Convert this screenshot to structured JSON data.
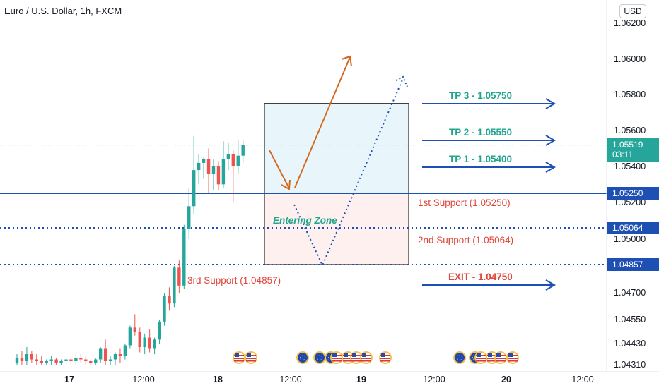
{
  "title": "Euro / U.S. Dollar, 1h, FXCM",
  "currency_button": "USD",
  "colors": {
    "up": "#26a69a",
    "down": "#ef5350",
    "support_line": "#1e4fb3",
    "tp_text": "#1fa58c",
    "exit_text": "#e0453b",
    "arrow": "#1e4fb3",
    "orange_arrow": "#d2691e",
    "dotted_arrow": "#1e4fb3",
    "price_line": "#26a69a",
    "zone_fill_upper": "#e8f6fb",
    "zone_fill_lower": "#fdf0ef"
  },
  "chart_data": {
    "type": "candlestick",
    "title": "Euro / U.S. Dollar, 1h, FXCM",
    "ylim": [
      1.0431,
      1.0622
    ],
    "y_ticks": [
      "1.06200",
      "1.06000",
      "1.05800",
      "1.05600",
      "1.05400",
      "1.05200",
      "1.05000",
      "1.04700",
      "1.04550",
      "1.04430",
      "1.04310"
    ],
    "x_ticks": [
      "17",
      "12:00",
      "18",
      "12:00",
      "19",
      "12:00",
      "20",
      "12:00"
    ],
    "candles": [
      {
        "o": 1.0432,
        "h": 1.0437,
        "l": 1.0431,
        "c": 1.0435
      },
      {
        "o": 1.0435,
        "h": 1.0439,
        "l": 1.0431,
        "c": 1.0433
      },
      {
        "o": 1.0433,
        "h": 1.0441,
        "l": 1.0431,
        "c": 1.0437
      },
      {
        "o": 1.0437,
        "h": 1.0439,
        "l": 1.0432,
        "c": 1.0434
      },
      {
        "o": 1.0434,
        "h": 1.0437,
        "l": 1.0431,
        "c": 1.0433
      },
      {
        "o": 1.0433,
        "h": 1.0436,
        "l": 1.0431,
        "c": 1.0432
      },
      {
        "o": 1.0432,
        "h": 1.0434,
        "l": 1.0431,
        "c": 1.0433
      },
      {
        "o": 1.0433,
        "h": 1.0436,
        "l": 1.0431,
        "c": 1.0434
      },
      {
        "o": 1.0434,
        "h": 1.0435,
        "l": 1.0431,
        "c": 1.0432
      },
      {
        "o": 1.0432,
        "h": 1.0434,
        "l": 1.0431,
        "c": 1.0433
      },
      {
        "o": 1.0433,
        "h": 1.0436,
        "l": 1.0431,
        "c": 1.0434
      },
      {
        "o": 1.0434,
        "h": 1.0436,
        "l": 1.0431,
        "c": 1.0433
      },
      {
        "o": 1.0433,
        "h": 1.0437,
        "l": 1.0431,
        "c": 1.0435
      },
      {
        "o": 1.0435,
        "h": 1.0437,
        "l": 1.0432,
        "c": 1.0434
      },
      {
        "o": 1.0434,
        "h": 1.0436,
        "l": 1.0431,
        "c": 1.0433
      },
      {
        "o": 1.0433,
        "h": 1.0434,
        "l": 1.0431,
        "c": 1.0432
      },
      {
        "o": 1.0432,
        "h": 1.0435,
        "l": 1.0431,
        "c": 1.0434
      },
      {
        "o": 1.0434,
        "h": 1.0441,
        "l": 1.0432,
        "c": 1.044
      },
      {
        "o": 1.044,
        "h": 1.0445,
        "l": 1.0431,
        "c": 1.0433
      },
      {
        "o": 1.0433,
        "h": 1.0436,
        "l": 1.0431,
        "c": 1.0434
      },
      {
        "o": 1.0434,
        "h": 1.0438,
        "l": 1.0431,
        "c": 1.0437
      },
      {
        "o": 1.0437,
        "h": 1.044,
        "l": 1.0432,
        "c": 1.0436
      },
      {
        "o": 1.0436,
        "h": 1.0443,
        "l": 1.0434,
        "c": 1.0442
      },
      {
        "o": 1.0442,
        "h": 1.0452,
        "l": 1.044,
        "c": 1.0451
      },
      {
        "o": 1.0451,
        "h": 1.0458,
        "l": 1.0447,
        "c": 1.0449
      },
      {
        "o": 1.0449,
        "h": 1.0451,
        "l": 1.0438,
        "c": 1.0441
      },
      {
        "o": 1.0441,
        "h": 1.0448,
        "l": 1.0437,
        "c": 1.0446
      },
      {
        "o": 1.0446,
        "h": 1.045,
        "l": 1.0438,
        "c": 1.044
      },
      {
        "o": 1.044,
        "h": 1.0446,
        "l": 1.0437,
        "c": 1.0445
      },
      {
        "o": 1.0445,
        "h": 1.0455,
        "l": 1.0443,
        "c": 1.0454
      },
      {
        "o": 1.0454,
        "h": 1.047,
        "l": 1.0452,
        "c": 1.0468
      },
      {
        "o": 1.0468,
        "h": 1.0473,
        "l": 1.046,
        "c": 1.0464
      },
      {
        "o": 1.0464,
        "h": 1.0485,
        "l": 1.0462,
        "c": 1.0484
      },
      {
        "o": 1.0484,
        "h": 1.0488,
        "l": 1.047,
        "c": 1.0474
      },
      {
        "o": 1.0474,
        "h": 1.0508,
        "l": 1.0472,
        "c": 1.0506
      },
      {
        "o": 1.0506,
        "h": 1.0528,
        "l": 1.05,
        "c": 1.0518
      },
      {
        "o": 1.0518,
        "h": 1.0557,
        "l": 1.0514,
        "c": 1.0538
      },
      {
        "o": 1.0538,
        "h": 1.0547,
        "l": 1.053,
        "c": 1.0542
      },
      {
        "o": 1.0542,
        "h": 1.0545,
        "l": 1.0533,
        "c": 1.0544
      },
      {
        "o": 1.0544,
        "h": 1.055,
        "l": 1.0525,
        "c": 1.0536
      },
      {
        "o": 1.0536,
        "h": 1.0544,
        "l": 1.0527,
        "c": 1.054
      },
      {
        "o": 1.054,
        "h": 1.0543,
        "l": 1.0527,
        "c": 1.053
      },
      {
        "o": 1.053,
        "h": 1.0554,
        "l": 1.0528,
        "c": 1.0544
      },
      {
        "o": 1.0544,
        "h": 1.0553,
        "l": 1.0538,
        "c": 1.0547
      },
      {
        "o": 1.0547,
        "h": 1.0549,
        "l": 1.052,
        "c": 1.054
      },
      {
        "o": 1.054,
        "h": 1.0555,
        "l": 1.0536,
        "c": 1.0546
      },
      {
        "o": 1.0546,
        "h": 1.0555,
        "l": 1.0542,
        "c": 1.0552
      }
    ],
    "current_price": "1.05519",
    "countdown": "03:11",
    "levels": [
      {
        "label": "1.05250",
        "price": 1.0525,
        "style": "solid"
      },
      {
        "label": "1.05064",
        "price": 1.05064,
        "style": "dotted"
      },
      {
        "label": "1.04857",
        "price": 1.04857,
        "style": "dotted"
      }
    ],
    "annotations": {
      "tp3": "TP 3 - 1.05750",
      "tp2": "TP 2 - 1.05550",
      "tp1": "TP 1 - 1.05400",
      "exit": "EXIT - 1.04750",
      "support1": "1st Support (1.05250)",
      "support2": "2nd Support (1.05064)",
      "support3": "3rd Support (1.04857)",
      "entering_zone": "Entering Zone"
    },
    "zone": {
      "top": 1.0575,
      "mid": 1.0525,
      "bottom": 1.04857
    }
  },
  "events": {
    "group1": [
      "us-flag",
      "us-flag"
    ],
    "group2": [
      "eu-flag",
      "eu-flag",
      "eu-flag",
      "us-flag",
      "us-flag",
      "us-flag",
      "us-flag"
    ],
    "group3": [
      "eu-flag",
      "eu-flag",
      "us-flag",
      "us-flag",
      "us-flag",
      "us-flag"
    ]
  }
}
